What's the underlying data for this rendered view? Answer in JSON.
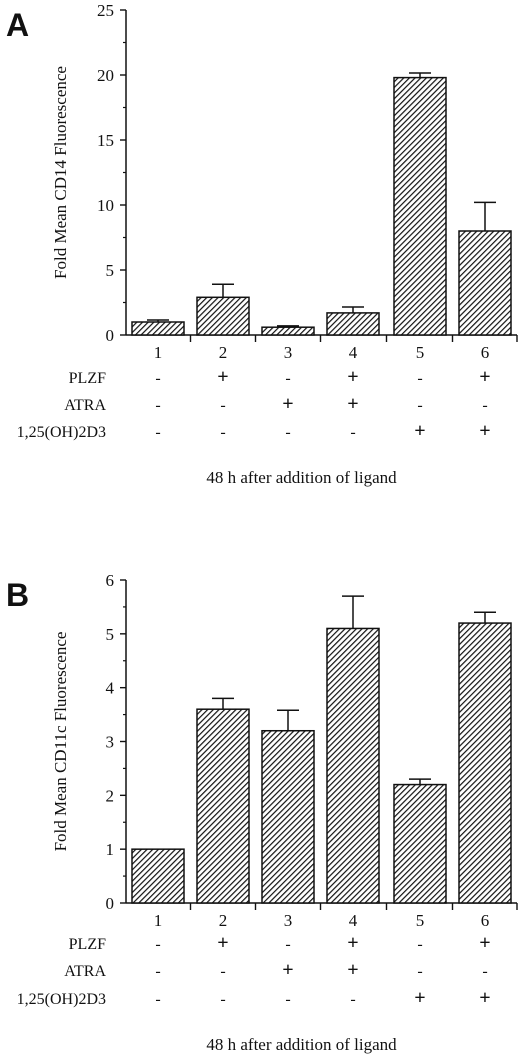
{
  "chart_data": [
    {
      "type": "bar",
      "panel_label": "A",
      "ylabel": "Fold Mean CD14 Fluorescence",
      "xlabel": "48 h after addition of ligand",
      "ylim": [
        0,
        25
      ],
      "yticks": [
        0,
        5,
        10,
        15,
        20,
        25
      ],
      "categories": [
        "1",
        "2",
        "3",
        "4",
        "5",
        "6"
      ],
      "values": [
        1.0,
        2.9,
        0.6,
        1.7,
        19.8,
        8.0
      ],
      "errors": [
        0.15,
        1.0,
        0.1,
        0.45,
        0.35,
        2.2
      ],
      "bar_fill": "hatched",
      "conditions": [
        {
          "label": "PLZF",
          "marks": [
            "-",
            "+",
            "-",
            "+",
            "-",
            "+"
          ]
        },
        {
          "label": "ATRA",
          "marks": [
            "-",
            "-",
            "+",
            "+",
            "-",
            "-"
          ]
        },
        {
          "label": "1,25(OH)2D3",
          "marks": [
            "-",
            "-",
            "-",
            "-",
            "+",
            "+"
          ]
        }
      ]
    },
    {
      "type": "bar",
      "panel_label": "B",
      "ylabel": "Fold Mean CD11c Fluorescence",
      "xlabel": "48 h after addition of ligand",
      "ylim": [
        0,
        6
      ],
      "yticks": [
        0,
        1,
        2,
        3,
        4,
        5,
        6
      ],
      "categories": [
        "1",
        "2",
        "3",
        "4",
        "5",
        "6"
      ],
      "values": [
        1.0,
        3.6,
        3.2,
        5.1,
        2.2,
        5.2
      ],
      "errors": [
        0.0,
        0.2,
        0.38,
        0.6,
        0.1,
        0.2
      ],
      "bar_fill": "hatched",
      "conditions": [
        {
          "label": "PLZF",
          "marks": [
            "-",
            "+",
            "-",
            "+",
            "-",
            "+"
          ]
        },
        {
          "label": "ATRA",
          "marks": [
            "-",
            "-",
            "+",
            "+",
            "-",
            "-"
          ]
        },
        {
          "label": "1,25(OH)2D3",
          "marks": [
            "-",
            "-",
            "-",
            "-",
            "+",
            "+"
          ]
        }
      ]
    }
  ],
  "colors": {
    "ink": "#111111",
    "bar_stroke": "#111111",
    "hatch_background": "#ffffff"
  }
}
